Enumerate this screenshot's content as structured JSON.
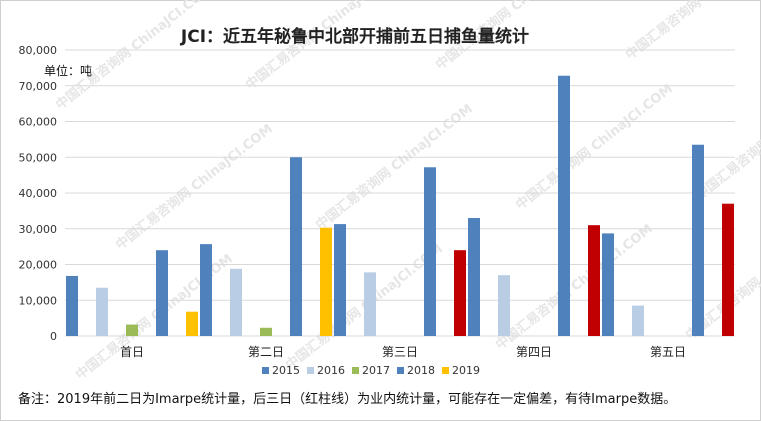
{
  "chart_data": {
    "type": "bar",
    "title": "JCI：近五年秘鲁中北部开捕前五日捕鱼量统计",
    "unit_label": "单位：吨",
    "categories": [
      "首日",
      "第二日",
      "第三日",
      "第四日",
      "第五日"
    ],
    "ylim": [
      0,
      80000
    ],
    "yticks": [
      "0",
      "10,000",
      "20,000",
      "30,000",
      "40,000",
      "50,000",
      "60,000",
      "70,000",
      "80,000"
    ],
    "grid": true,
    "legend_position": "bottom",
    "series": [
      {
        "name": "2015",
        "color": "#4F81BD",
        "values": [
          16800,
          25700,
          31300,
          33000,
          28700
        ]
      },
      {
        "name": "2016",
        "color": "#B9CDE5",
        "values": [
          13500,
          18800,
          17800,
          17000,
          8500
        ]
      },
      {
        "name": "2017",
        "color": "#9BBB59",
        "values": [
          3200,
          2300,
          null,
          null,
          null
        ]
      },
      {
        "name": "2018",
        "color": "#4F81BD",
        "values": [
          24000,
          50000,
          47200,
          72800,
          53500
        ]
      },
      {
        "name": "2019",
        "color": "#FFC000",
        "values": [
          6800,
          30300,
          24000,
          31000,
          37000
        ]
      }
    ],
    "highlight_color": "#C00000",
    "highlight_series": "2019",
    "highlight_from_index": 2,
    "watermark_text": "中国汇易咨询网 ChinaJCI.COM"
  },
  "note": "备注：2019年前二日为Imarpe统计量，后三日（红柱线）为业内统计量，可能存在一定偏差，有待Imarpe数据。"
}
